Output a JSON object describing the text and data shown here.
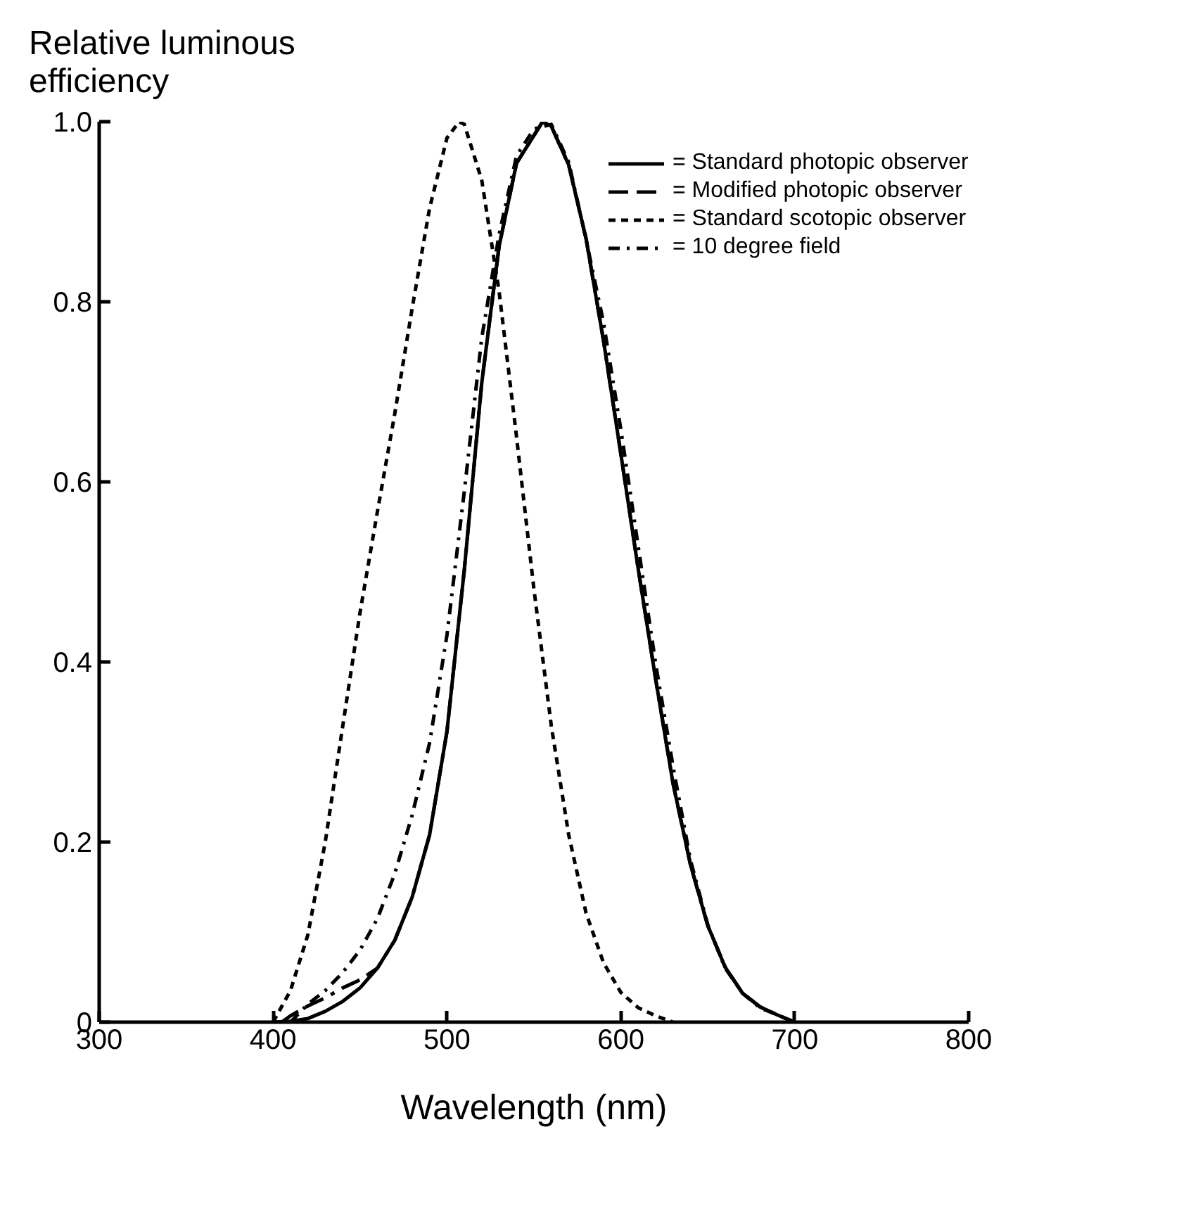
{
  "chart_data": {
    "type": "line",
    "ylabel": "Relative luminous efficiency",
    "xlabel": "Wavelength (nm)",
    "xlim": [
      300,
      800
    ],
    "xticks": [
      300,
      400,
      500,
      600,
      700,
      800
    ],
    "ylim": [
      0,
      1
    ],
    "yticks": [
      {
        "value": 0,
        "label": "0"
      },
      0.2,
      0.4,
      0.6,
      0.8,
      {
        "value": 1,
        "label": "1.0"
      }
    ],
    "grid": false,
    "legend": "top right",
    "marker": "none",
    "series": [
      {
        "name": "= Standard photopic observer",
        "color": "#000000",
        "line_style": "solid",
        "x": [
          400,
          410,
          420,
          430,
          440,
          450,
          460,
          470,
          480,
          490,
          500,
          510,
          520,
          530,
          540,
          555,
          560,
          570,
          580,
          590,
          600,
          610,
          620,
          630,
          640,
          650,
          660,
          670,
          680,
          690,
          700
        ],
        "values": [
          0.0,
          0.001,
          0.004,
          0.012,
          0.023,
          0.038,
          0.06,
          0.091,
          0.139,
          0.208,
          0.323,
          0.503,
          0.71,
          0.862,
          0.954,
          1.0,
          0.995,
          0.952,
          0.87,
          0.757,
          0.631,
          0.503,
          0.381,
          0.265,
          0.175,
          0.107,
          0.061,
          0.032,
          0.017,
          0.008,
          0.0
        ]
      },
      {
        "name": "= Modified photopic observer",
        "color": "#000000",
        "line_style": "dashed",
        "x": [
          405,
          410,
          420,
          430,
          440,
          450,
          460,
          470,
          480,
          490,
          500,
          510,
          520,
          530,
          540,
          555,
          560,
          570,
          580,
          590,
          600,
          610,
          620,
          630,
          640,
          650,
          660,
          670,
          680,
          690,
          700
        ],
        "values": [
          0.0,
          0.007,
          0.018,
          0.027,
          0.038,
          0.047,
          0.06,
          0.091,
          0.139,
          0.208,
          0.323,
          0.503,
          0.71,
          0.862,
          0.954,
          1.0,
          0.995,
          0.952,
          0.87,
          0.757,
          0.631,
          0.503,
          0.381,
          0.265,
          0.175,
          0.107,
          0.061,
          0.032,
          0.017,
          0.008,
          0.0
        ]
      },
      {
        "name": "= Standard scotopic observer",
        "color": "#000000",
        "line_style": "dotted",
        "x": [
          400,
          410,
          420,
          430,
          440,
          450,
          460,
          470,
          480,
          490,
          500,
          507,
          510,
          520,
          530,
          540,
          550,
          560,
          570,
          580,
          590,
          600,
          610,
          620,
          630
        ],
        "values": [
          0.0,
          0.035,
          0.097,
          0.2,
          0.328,
          0.455,
          0.567,
          0.676,
          0.793,
          0.904,
          0.982,
          1.0,
          0.997,
          0.935,
          0.811,
          0.65,
          0.481,
          0.329,
          0.208,
          0.121,
          0.066,
          0.033,
          0.016,
          0.007,
          0.0
        ]
      },
      {
        "name": "= 10 degree field",
        "color": "#000000",
        "line_style": "dashdot",
        "x": [
          410,
          420,
          430,
          440,
          450,
          460,
          470,
          480,
          490,
          500,
          510,
          520,
          530,
          540,
          550,
          560,
          570,
          580,
          590,
          600,
          610,
          620,
          630,
          640,
          650,
          660,
          670,
          680,
          690,
          700
        ],
        "values": [
          0.0,
          0.02,
          0.035,
          0.055,
          0.08,
          0.115,
          0.165,
          0.23,
          0.31,
          0.43,
          0.59,
          0.76,
          0.875,
          0.962,
          0.992,
          0.997,
          0.955,
          0.869,
          0.777,
          0.658,
          0.528,
          0.398,
          0.284,
          0.18,
          0.108,
          0.06,
          0.032,
          0.016,
          0.008,
          0.0
        ]
      }
    ]
  }
}
